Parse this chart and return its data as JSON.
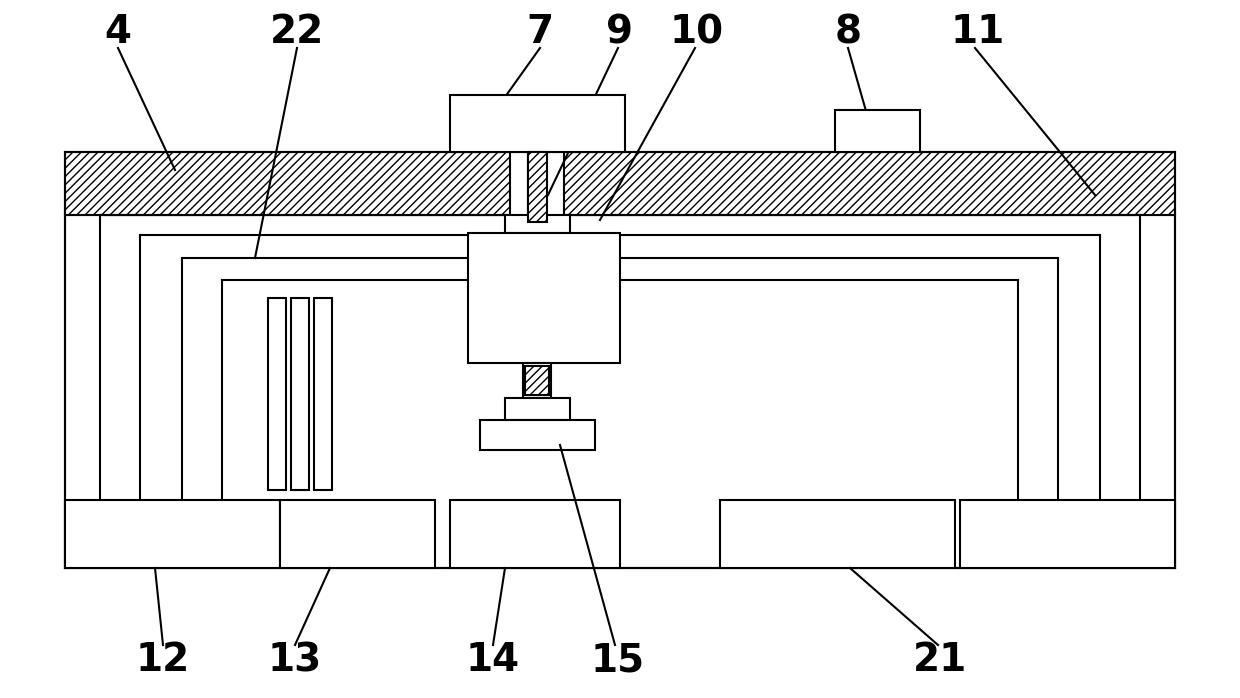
{
  "bg_color": "#ffffff",
  "line_color": "#000000",
  "lw": 1.5,
  "fig_w": 12.4,
  "fig_h": 6.98,
  "label_fontsize": 28
}
